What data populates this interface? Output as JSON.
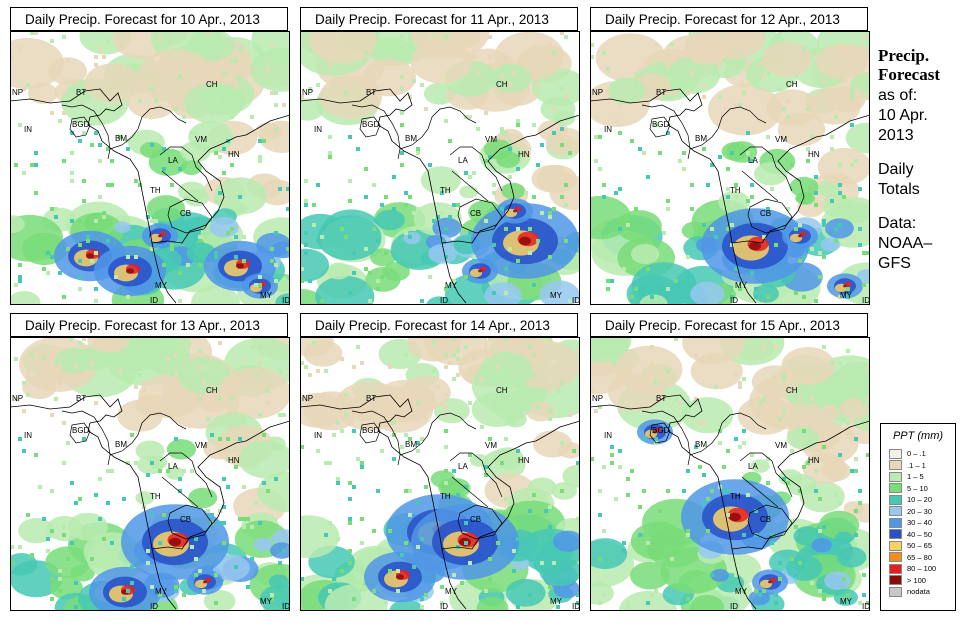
{
  "panels": [
    {
      "title": "Daily Precip. Forecast for  10 Apr., 2013",
      "heavy": [
        [
          150,
          205,
          1
        ],
        [
          80,
          225,
          2
        ],
        [
          120,
          240,
          2
        ],
        [
          230,
          235,
          2
        ],
        [
          250,
          255,
          1
        ]
      ]
    },
    {
      "title": "Daily Precip. Forecast for  11 Apr., 2013",
      "heavy": [
        [
          225,
          210,
          3
        ],
        [
          180,
          240,
          1
        ],
        [
          215,
          180,
          1
        ]
      ]
    },
    {
      "title": "Daily Precip. Forecast for  12 Apr., 2013",
      "heavy": [
        [
          165,
          215,
          3
        ],
        [
          210,
          205,
          1
        ],
        [
          255,
          255,
          1
        ]
      ]
    },
    {
      "title": "Daily Precip. Forecast for  13 Apr., 2013",
      "heavy": [
        [
          165,
          205,
          3
        ],
        [
          115,
          255,
          2
        ],
        [
          195,
          245,
          1
        ]
      ]
    },
    {
      "title": "Daily Precip. Forecast for  14 Apr., 2013",
      "heavy": [
        [
          140,
          195,
          3
        ],
        [
          165,
          205,
          3
        ],
        [
          100,
          240,
          2
        ]
      ]
    },
    {
      "title": "Daily Precip. Forecast for  15 Apr., 2013",
      "heavy": [
        [
          145,
          180,
          3
        ],
        [
          65,
          95,
          1
        ],
        [
          180,
          245,
          1
        ]
      ]
    }
  ],
  "country_labels": [
    "NP",
    "BT",
    "BGD",
    "IN",
    "BM",
    "CH",
    "VM",
    "HN",
    "LA",
    "TH",
    "CB",
    "MY",
    "MY",
    "ID",
    "ID"
  ],
  "sidebar": {
    "heading_line1": "Precip.",
    "heading_line2": "Forecast",
    "as_of": "as of:",
    "date_line1": "10 Apr.",
    "date_line2": "2013",
    "totals_line1": "Daily",
    "totals_line2": "Totals",
    "data_line1": "Data:",
    "data_line2": "NOAA–",
    "data_line3": "GFS"
  },
  "legend": {
    "title": "PPT (mm)",
    "items": [
      {
        "label": "0 – .1",
        "color": "#f5f0e6"
      },
      {
        "label": ".1 – 1",
        "color": "#e8d7b8"
      },
      {
        "label": "1 – 5",
        "color": "#b9ebb0"
      },
      {
        "label": "5 – 10",
        "color": "#78dc78"
      },
      {
        "label": "10 – 20",
        "color": "#46c8b4"
      },
      {
        "label": "20 – 30",
        "color": "#96c8f0"
      },
      {
        "label": "30 – 40",
        "color": "#5096e6"
      },
      {
        "label": "40 – 50",
        "color": "#2850c8"
      },
      {
        "label": "50 – 65",
        "color": "#fad264"
      },
      {
        "label": "65 – 80",
        "color": "#f58c1e"
      },
      {
        "label": "80 – 100",
        "color": "#e61e1e"
      },
      {
        "label": "> 100",
        "color": "#8c0a0a"
      },
      {
        "label": "nodata",
        "color": "#c8c8c8"
      }
    ]
  }
}
